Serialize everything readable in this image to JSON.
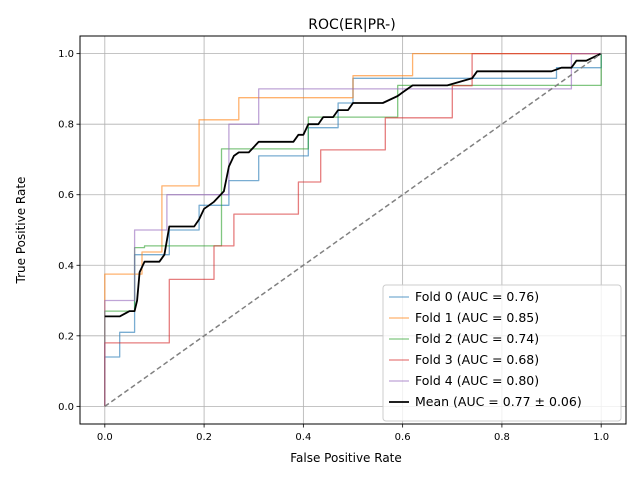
{
  "chart_data": {
    "type": "line",
    "title": "ROC(ER|PR-)",
    "xlabel": "False Positive Rate",
    "ylabel": "True Positive Rate",
    "xlim": [
      -0.05,
      1.05
    ],
    "ylim": [
      -0.05,
      1.05
    ],
    "xticks": [
      0.0,
      0.2,
      0.4,
      0.6,
      0.8,
      1.0
    ],
    "yticks": [
      0.0,
      0.2,
      0.4,
      0.6,
      0.8,
      1.0
    ],
    "xtick_labels": [
      "0.0",
      "0.2",
      "0.4",
      "0.6",
      "0.8",
      "1.0"
    ],
    "ytick_labels": [
      "0.0",
      "0.2",
      "0.4",
      "0.6",
      "0.8",
      "1.0"
    ],
    "grid": true,
    "legend_position": "lower-right",
    "series": [
      {
        "name": "Fold 0 (AUC = 0.76)",
        "color": "#1f77b4",
        "x": [
          0,
          0,
          0.03,
          0.03,
          0.06,
          0.06,
          0.13,
          0.13,
          0.19,
          0.19,
          0.25,
          0.25,
          0.31,
          0.31,
          0.41,
          0.41,
          0.47,
          0.47,
          0.5,
          0.5,
          0.59,
          0.59,
          0.91,
          0.91,
          1.0,
          1.0
        ],
        "y": [
          0,
          0.14,
          0.14,
          0.21,
          0.21,
          0.43,
          0.43,
          0.5,
          0.5,
          0.57,
          0.57,
          0.64,
          0.64,
          0.71,
          0.71,
          0.79,
          0.79,
          0.86,
          0.86,
          0.93,
          0.93,
          0.93,
          0.93,
          0.96,
          0.96,
          1.0
        ]
      },
      {
        "name": "Fold 1 (AUC = 0.85)",
        "color": "#ff7f0e",
        "x": [
          0,
          0,
          0.075,
          0.075,
          0.115,
          0.115,
          0.19,
          0.19,
          0.27,
          0.27,
          0.5,
          0.5,
          0.62,
          0.62,
          1.0
        ],
        "y": [
          0,
          0.375,
          0.375,
          0.4375,
          0.4375,
          0.625,
          0.625,
          0.8125,
          0.8125,
          0.875,
          0.875,
          0.9375,
          0.9375,
          1.0,
          1.0
        ]
      },
      {
        "name": "Fold 2 (AUC = 0.74)",
        "color": "#2ca02c",
        "x": [
          0,
          0,
          0.06,
          0.06,
          0.08,
          0.08,
          0.235,
          0.235,
          0.41,
          0.41,
          0.59,
          0.59,
          0.76,
          0.76,
          1.0,
          1.0
        ],
        "y": [
          0,
          0.27,
          0.27,
          0.45,
          0.45,
          0.455,
          0.455,
          0.73,
          0.73,
          0.82,
          0.82,
          0.91,
          0.91,
          0.91,
          0.91,
          1.0
        ]
      },
      {
        "name": "Fold 3 (AUC = 0.68)",
        "color": "#d62728",
        "x": [
          0,
          0,
          0.13,
          0.13,
          0.22,
          0.22,
          0.26,
          0.26,
          0.39,
          0.39,
          0.435,
          0.435,
          0.565,
          0.565,
          0.7,
          0.7,
          0.74,
          0.74,
          1.0
        ],
        "y": [
          0,
          0.18,
          0.18,
          0.36,
          0.36,
          0.455,
          0.455,
          0.545,
          0.545,
          0.636,
          0.636,
          0.727,
          0.727,
          0.818,
          0.818,
          0.909,
          0.909,
          1.0,
          1.0
        ]
      },
      {
        "name": "Fold 4 (AUC = 0.80)",
        "color": "#9467bd",
        "x": [
          0,
          0,
          0.06,
          0.06,
          0.125,
          0.125,
          0.25,
          0.25,
          0.31,
          0.31,
          0.94,
          0.94,
          1.0
        ],
        "y": [
          0,
          0.3,
          0.3,
          0.5,
          0.5,
          0.6,
          0.6,
          0.8,
          0.8,
          0.9,
          0.9,
          1.0,
          1.0
        ]
      },
      {
        "name": "Mean (AUC = 0.77 ± 0.06)",
        "color": "#000000",
        "x": [
          0,
          0.03,
          0.05,
          0.06,
          0.065,
          0.07,
          0.08,
          0.11,
          0.12,
          0.13,
          0.18,
          0.19,
          0.2,
          0.21,
          0.22,
          0.24,
          0.25,
          0.26,
          0.27,
          0.29,
          0.31,
          0.38,
          0.39,
          0.4,
          0.41,
          0.43,
          0.44,
          0.46,
          0.47,
          0.49,
          0.5,
          0.56,
          0.59,
          0.6,
          0.62,
          0.69,
          0.74,
          0.75,
          0.9,
          0.92,
          0.94,
          0.95,
          0.97,
          1.0
        ],
        "y": [
          0.255,
          0.255,
          0.27,
          0.27,
          0.3,
          0.38,
          0.41,
          0.41,
          0.43,
          0.51,
          0.51,
          0.53,
          0.56,
          0.57,
          0.58,
          0.61,
          0.68,
          0.71,
          0.72,
          0.72,
          0.75,
          0.75,
          0.77,
          0.77,
          0.8,
          0.8,
          0.82,
          0.82,
          0.84,
          0.84,
          0.86,
          0.86,
          0.88,
          0.89,
          0.91,
          0.91,
          0.93,
          0.95,
          0.95,
          0.96,
          0.96,
          0.98,
          0.98,
          1.0
        ]
      },
      {
        "name": "",
        "color": "#808080",
        "dashed": true,
        "x": [
          0,
          1
        ],
        "y": [
          0,
          1
        ]
      }
    ]
  }
}
